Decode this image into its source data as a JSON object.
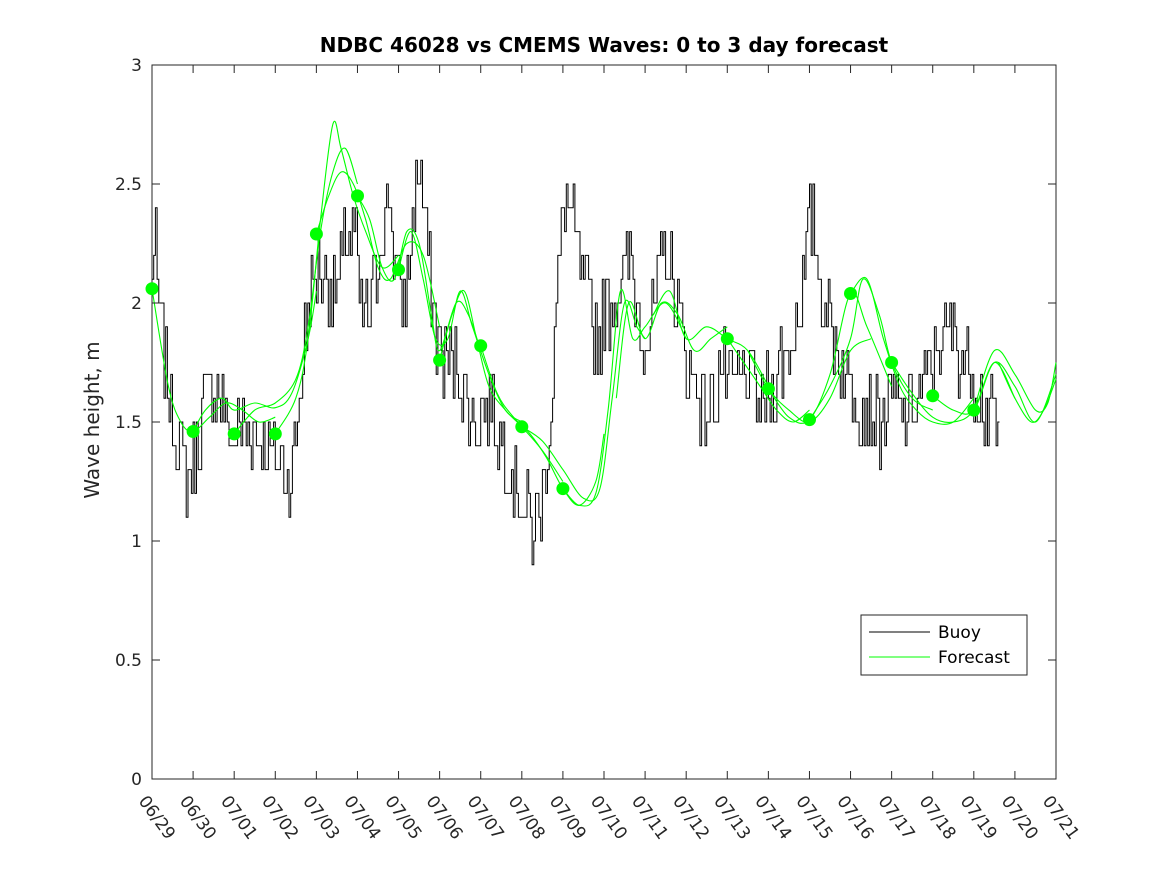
{
  "chart_data": {
    "type": "line",
    "title": "NDBC 46028 vs CMEMS Waves: 0 to 3 day forecast",
    "xlabel": "",
    "ylabel": "Wave height, m",
    "ylim": [
      0,
      3
    ],
    "y_ticks": [
      "0",
      "0.5",
      "1",
      "1.5",
      "2",
      "2.5",
      "3"
    ],
    "x_range_days": [
      0,
      22
    ],
    "x_ticks": [
      "06/29",
      "06/30",
      "07/01",
      "07/02",
      "07/03",
      "07/04",
      "07/05",
      "07/06",
      "07/07",
      "07/08",
      "07/09",
      "07/10",
      "07/11",
      "07/12",
      "07/13",
      "07/14",
      "07/15",
      "07/16",
      "07/17",
      "07/18",
      "07/19",
      "07/20",
      "07/21"
    ],
    "grid": false,
    "legend": {
      "placement": "bottom-right",
      "entries": [
        {
          "label": "Buoy",
          "color": "#000000"
        },
        {
          "label": "Forecast",
          "color": "#00ff00"
        }
      ]
    },
    "buoy_color": "#000000",
    "forecast_color": "#00ff00",
    "buoy_anchors": [
      [
        0.0,
        2.1
      ],
      [
        0.1,
        2.25
      ],
      [
        0.2,
        2.0
      ],
      [
        0.35,
        1.75
      ],
      [
        0.5,
        1.55
      ],
      [
        0.7,
        1.4
      ],
      [
        0.9,
        1.25
      ],
      [
        1.0,
        1.3
      ],
      [
        1.15,
        1.45
      ],
      [
        1.3,
        1.6
      ],
      [
        1.5,
        1.65
      ],
      [
        1.7,
        1.6
      ],
      [
        1.85,
        1.5
      ],
      [
        2.0,
        1.4
      ],
      [
        2.2,
        1.5
      ],
      [
        2.5,
        1.45
      ],
      [
        2.8,
        1.4
      ],
      [
        3.1,
        1.35
      ],
      [
        3.3,
        1.3
      ],
      [
        3.45,
        1.3
      ],
      [
        3.6,
        1.55
      ],
      [
        3.75,
        1.85
      ],
      [
        3.9,
        2.05
      ],
      [
        4.1,
        2.15
      ],
      [
        4.3,
        2.1
      ],
      [
        4.55,
        2.05
      ],
      [
        4.75,
        2.25
      ],
      [
        4.95,
        2.3
      ],
      [
        5.1,
        2.0
      ],
      [
        5.3,
        1.95
      ],
      [
        5.5,
        2.1
      ],
      [
        5.65,
        2.35
      ],
      [
        5.8,
        2.45
      ],
      [
        5.95,
        2.2
      ],
      [
        6.1,
        1.95
      ],
      [
        6.25,
        2.1
      ],
      [
        6.4,
        2.4
      ],
      [
        6.55,
        2.6
      ],
      [
        6.65,
        2.4
      ],
      [
        6.8,
        2.1
      ],
      [
        6.95,
        1.85
      ],
      [
        7.1,
        1.8
      ],
      [
        7.3,
        1.75
      ],
      [
        7.5,
        1.7
      ],
      [
        7.7,
        1.55
      ],
      [
        7.9,
        1.5
      ],
      [
        8.1,
        1.55
      ],
      [
        8.3,
        1.6
      ],
      [
        8.5,
        1.45
      ],
      [
        8.7,
        1.35
      ],
      [
        8.9,
        1.25
      ],
      [
        9.1,
        1.15
      ],
      [
        9.3,
        1.05
      ],
      [
        9.45,
        1.08
      ],
      [
        9.6,
        1.25
      ],
      [
        9.75,
        1.6
      ],
      [
        9.95,
        2.2
      ],
      [
        10.1,
        2.45
      ],
      [
        10.3,
        2.3
      ],
      [
        10.5,
        2.1
      ],
      [
        10.7,
        1.95
      ],
      [
        10.9,
        1.85
      ],
      [
        11.1,
        1.95
      ],
      [
        11.3,
        2.0
      ],
      [
        11.5,
        2.1
      ],
      [
        11.7,
        2.15
      ],
      [
        11.9,
        1.95
      ],
      [
        12.1,
        1.85
      ],
      [
        12.3,
        2.0
      ],
      [
        12.5,
        2.25
      ],
      [
        12.7,
        2.1
      ],
      [
        12.9,
        1.9
      ],
      [
        13.1,
        1.7
      ],
      [
        13.3,
        1.65
      ],
      [
        13.5,
        1.55
      ],
      [
        13.7,
        1.6
      ],
      [
        13.9,
        1.75
      ],
      [
        14.1,
        1.6
      ],
      [
        14.3,
        1.65
      ],
      [
        14.5,
        1.7
      ],
      [
        14.7,
        1.6
      ],
      [
        14.9,
        1.55
      ],
      [
        15.1,
        1.65
      ],
      [
        15.3,
        1.75
      ],
      [
        15.5,
        1.8
      ],
      [
        15.7,
        1.9
      ],
      [
        15.9,
        2.1
      ],
      [
        16.0,
        2.3
      ],
      [
        16.15,
        2.35
      ],
      [
        16.3,
        2.1
      ],
      [
        16.5,
        1.95
      ],
      [
        16.7,
        1.8
      ],
      [
        16.9,
        1.7
      ],
      [
        17.1,
        1.65
      ],
      [
        17.3,
        1.6
      ],
      [
        17.5,
        1.55
      ],
      [
        17.7,
        1.5
      ],
      [
        17.9,
        1.55
      ],
      [
        18.1,
        1.6
      ],
      [
        18.3,
        1.5
      ],
      [
        18.5,
        1.55
      ],
      [
        18.7,
        1.6
      ],
      [
        18.9,
        1.7
      ],
      [
        19.1,
        1.8
      ],
      [
        19.3,
        1.85
      ],
      [
        19.5,
        1.9
      ],
      [
        19.7,
        1.8
      ],
      [
        19.9,
        1.75
      ],
      [
        20.1,
        1.65
      ],
      [
        20.3,
        1.55
      ],
      [
        20.5,
        1.5
      ],
      [
        20.65,
        1.45
      ]
    ],
    "forecast_markers": [
      [
        0.0,
        2.06
      ],
      [
        1.0,
        1.46
      ],
      [
        2.0,
        1.45
      ],
      [
        3.0,
        1.45
      ],
      [
        4.0,
        2.29
      ],
      [
        5.0,
        2.45
      ],
      [
        6.0,
        2.14
      ],
      [
        7.0,
        1.76
      ],
      [
        8.0,
        1.82
      ],
      [
        9.0,
        1.48
      ],
      [
        10.0,
        1.22
      ],
      [
        14.0,
        1.85
      ],
      [
        15.0,
        1.64
      ],
      [
        16.0,
        1.51
      ],
      [
        17.0,
        2.04
      ],
      [
        18.0,
        1.75
      ],
      [
        19.0,
        1.61
      ],
      [
        20.0,
        1.55
      ]
    ],
    "forecast_runs": [
      {
        "start": 0,
        "points": [
          [
            0,
            2.06
          ],
          [
            0.4,
            1.65
          ],
          [
            0.7,
            1.5
          ],
          [
            1.0,
            1.46
          ],
          [
            1.4,
            1.52
          ],
          [
            1.8,
            1.58
          ],
          [
            2.2,
            1.55
          ],
          [
            2.6,
            1.5
          ],
          [
            3.0,
            1.52
          ]
        ]
      },
      {
        "start": 1,
        "points": [
          [
            1.0,
            1.46
          ],
          [
            1.3,
            1.55
          ],
          [
            1.7,
            1.6
          ],
          [
            2.0,
            1.55
          ],
          [
            2.5,
            1.58
          ],
          [
            3.0,
            1.56
          ],
          [
            3.4,
            1.62
          ],
          [
            3.8,
            1.85
          ],
          [
            4.0,
            2.05
          ]
        ]
      },
      {
        "start": 2,
        "points": [
          [
            2.0,
            1.45
          ],
          [
            2.5,
            1.55
          ],
          [
            3.0,
            1.58
          ],
          [
            3.5,
            1.68
          ],
          [
            3.8,
            1.9
          ],
          [
            4.1,
            2.3
          ],
          [
            4.4,
            2.55
          ],
          [
            4.7,
            2.65
          ],
          [
            5.0,
            2.5
          ]
        ]
      },
      {
        "start": 3,
        "points": [
          [
            3.0,
            1.45
          ],
          [
            3.5,
            1.6
          ],
          [
            3.8,
            1.85
          ],
          [
            4.1,
            2.35
          ],
          [
            4.4,
            2.75
          ],
          [
            4.6,
            2.65
          ],
          [
            4.9,
            2.45
          ],
          [
            5.2,
            2.3
          ],
          [
            5.6,
            2.15
          ],
          [
            6.0,
            2.2
          ]
        ]
      },
      {
        "start": 4,
        "points": [
          [
            4.0,
            2.29
          ],
          [
            4.3,
            2.45
          ],
          [
            4.6,
            2.55
          ],
          [
            4.9,
            2.5
          ],
          [
            5.2,
            2.35
          ],
          [
            5.5,
            2.15
          ],
          [
            5.8,
            2.1
          ],
          [
            6.2,
            2.25
          ],
          [
            6.6,
            2.2
          ],
          [
            7.0,
            1.9
          ]
        ]
      },
      {
        "start": 5,
        "points": [
          [
            5.0,
            2.45
          ],
          [
            5.3,
            2.35
          ],
          [
            5.6,
            2.15
          ],
          [
            5.9,
            2.1
          ],
          [
            6.2,
            2.3
          ],
          [
            6.5,
            2.25
          ],
          [
            6.8,
            1.95
          ],
          [
            7.0,
            1.8
          ],
          [
            7.4,
            2.0
          ],
          [
            7.7,
            1.95
          ],
          [
            8.0,
            1.8
          ]
        ]
      },
      {
        "start": 6,
        "points": [
          [
            6.0,
            2.14
          ],
          [
            6.3,
            2.3
          ],
          [
            6.6,
            2.1
          ],
          [
            6.9,
            1.85
          ],
          [
            7.2,
            1.85
          ],
          [
            7.5,
            2.05
          ],
          [
            7.8,
            1.9
          ],
          [
            8.2,
            1.7
          ],
          [
            8.6,
            1.55
          ],
          [
            9.0,
            1.5
          ]
        ]
      },
      {
        "start": 7,
        "points": [
          [
            7.0,
            1.76
          ],
          [
            7.3,
            1.95
          ],
          [
            7.6,
            2.05
          ],
          [
            7.9,
            1.85
          ],
          [
            8.2,
            1.65
          ],
          [
            8.6,
            1.55
          ],
          [
            9.0,
            1.48
          ],
          [
            9.5,
            1.38
          ],
          [
            10.0,
            1.25
          ]
        ]
      },
      {
        "start": 8,
        "points": [
          [
            8.0,
            1.82
          ],
          [
            8.4,
            1.62
          ],
          [
            8.8,
            1.52
          ],
          [
            9.2,
            1.45
          ],
          [
            9.6,
            1.35
          ],
          [
            10.0,
            1.22
          ],
          [
            10.4,
            1.15
          ],
          [
            10.8,
            1.25
          ],
          [
            11.0,
            1.45
          ]
        ]
      },
      {
        "start": 9,
        "points": [
          [
            9.0,
            1.48
          ],
          [
            9.5,
            1.42
          ],
          [
            10.0,
            1.3
          ],
          [
            10.5,
            1.18
          ],
          [
            10.9,
            1.22
          ],
          [
            11.2,
            1.6
          ],
          [
            11.5,
            2.0
          ],
          [
            11.8,
            1.9
          ],
          [
            12.0,
            1.85
          ]
        ]
      },
      {
        "start": 10,
        "points": [
          [
            10.0,
            1.22
          ],
          [
            10.4,
            1.15
          ],
          [
            10.8,
            1.2
          ],
          [
            11.1,
            1.55
          ],
          [
            11.4,
            2.05
          ],
          [
            11.7,
            1.85
          ],
          [
            12.0,
            1.9
          ],
          [
            12.5,
            2.0
          ],
          [
            13.0,
            1.85
          ]
        ]
      },
      {
        "start": 11,
        "points": [
          [
            11.3,
            1.6
          ],
          [
            11.6,
            2.0
          ],
          [
            12.0,
            1.85
          ],
          [
            12.4,
            2.0
          ],
          [
            12.8,
            1.95
          ],
          [
            13.2,
            1.8
          ],
          [
            13.6,
            1.85
          ],
          [
            14.0,
            1.9
          ]
        ]
      },
      {
        "start": 12,
        "points": [
          [
            12.2,
            1.95
          ],
          [
            12.6,
            2.05
          ],
          [
            13.0,
            1.85
          ],
          [
            13.5,
            1.9
          ],
          [
            14.0,
            1.85
          ],
          [
            14.5,
            1.8
          ],
          [
            15.0,
            1.65
          ]
        ]
      },
      {
        "start": 13,
        "points": [
          [
            14.0,
            1.85
          ],
          [
            14.4,
            1.75
          ],
          [
            14.8,
            1.65
          ],
          [
            15.2,
            1.55
          ],
          [
            15.6,
            1.5
          ],
          [
            16.0,
            1.55
          ]
        ]
      },
      {
        "start": 14,
        "points": [
          [
            14.5,
            1.8
          ],
          [
            15.0,
            1.64
          ],
          [
            15.5,
            1.55
          ],
          [
            16.0,
            1.5
          ],
          [
            16.5,
            1.6
          ],
          [
            17.0,
            1.8
          ],
          [
            17.5,
            1.85
          ]
        ]
      },
      {
        "start": 15,
        "points": [
          [
            15.0,
            1.64
          ],
          [
            15.5,
            1.52
          ],
          [
            16.0,
            1.51
          ],
          [
            16.5,
            1.7
          ],
          [
            17.0,
            2.04
          ],
          [
            17.4,
            1.9
          ],
          [
            18.0,
            1.65
          ]
        ]
      },
      {
        "start": 16,
        "points": [
          [
            16.0,
            1.51
          ],
          [
            16.5,
            1.65
          ],
          [
            17.0,
            1.85
          ],
          [
            17.3,
            2.1
          ],
          [
            17.7,
            1.95
          ],
          [
            18.0,
            1.75
          ],
          [
            18.5,
            1.6
          ],
          [
            19.0,
            1.55
          ]
        ]
      },
      {
        "start": 17,
        "points": [
          [
            17.0,
            2.04
          ],
          [
            17.4,
            2.1
          ],
          [
            17.8,
            1.85
          ],
          [
            18.2,
            1.65
          ],
          [
            18.6,
            1.55
          ],
          [
            19.0,
            1.5
          ],
          [
            19.5,
            1.5
          ],
          [
            20.0,
            1.6
          ]
        ]
      },
      {
        "start": 18,
        "points": [
          [
            18.0,
            1.75
          ],
          [
            18.5,
            1.62
          ],
          [
            19.0,
            1.52
          ],
          [
            19.5,
            1.5
          ],
          [
            20.0,
            1.55
          ],
          [
            20.5,
            1.75
          ],
          [
            21.0,
            1.6
          ]
        ]
      },
      {
        "start": 19,
        "points": [
          [
            19.0,
            1.61
          ],
          [
            19.5,
            1.55
          ],
          [
            20.0,
            1.55
          ],
          [
            20.5,
            1.75
          ],
          [
            21.0,
            1.65
          ],
          [
            21.5,
            1.5
          ],
          [
            22.0,
            1.7
          ]
        ]
      },
      {
        "start": 20,
        "points": [
          [
            20.0,
            1.55
          ],
          [
            20.5,
            1.8
          ],
          [
            21.0,
            1.7
          ],
          [
            21.5,
            1.55
          ],
          [
            21.8,
            1.58
          ],
          [
            22.0,
            1.75
          ]
        ]
      },
      {
        "start": 21,
        "points": [
          [
            20.6,
            1.75
          ],
          [
            21.0,
            1.6
          ],
          [
            21.4,
            1.5
          ],
          [
            21.7,
            1.55
          ],
          [
            22.0,
            1.68
          ]
        ]
      }
    ]
  }
}
